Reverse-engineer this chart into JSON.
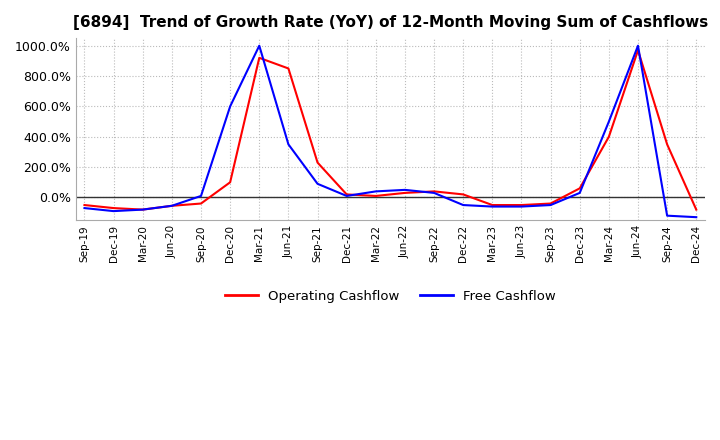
{
  "title": "[6894]  Trend of Growth Rate (YoY) of 12-Month Moving Sum of Cashflows",
  "title_fontsize": 11,
  "ylim": [
    -150,
    1050
  ],
  "yticks": [
    0,
    200,
    400,
    600,
    800,
    1000
  ],
  "ytick_labels": [
    "0.0%",
    "200.0%",
    "400.0%",
    "600.0%",
    "800.0%",
    "1000.0%"
  ],
  "background_color": "#ffffff",
  "grid_color": "#bbbbbb",
  "legend_entries": [
    "Operating Cashflow",
    "Free Cashflow"
  ],
  "line_colors": [
    "red",
    "blue"
  ],
  "x_labels": [
    "Sep-19",
    "Dec-19",
    "Mar-20",
    "Jun-20",
    "Sep-20",
    "Dec-20",
    "Mar-21",
    "Jun-21",
    "Sep-21",
    "Dec-21",
    "Mar-22",
    "Jun-22",
    "Sep-22",
    "Dec-22",
    "Mar-23",
    "Jun-23",
    "Sep-23",
    "Dec-23",
    "Mar-24",
    "Jun-24",
    "Sep-24",
    "Dec-24"
  ],
  "operating_cashflow": [
    -50,
    -70,
    -80,
    -55,
    -40,
    100,
    920,
    850,
    230,
    20,
    10,
    30,
    40,
    20,
    -50,
    -50,
    -40,
    60,
    400,
    970,
    350,
    -80
  ],
  "free_cashflow": [
    -70,
    -90,
    -80,
    -55,
    10,
    600,
    1000,
    350,
    90,
    10,
    40,
    50,
    30,
    -50,
    -60,
    -60,
    -50,
    30,
    500,
    1000,
    -120,
    -130
  ]
}
